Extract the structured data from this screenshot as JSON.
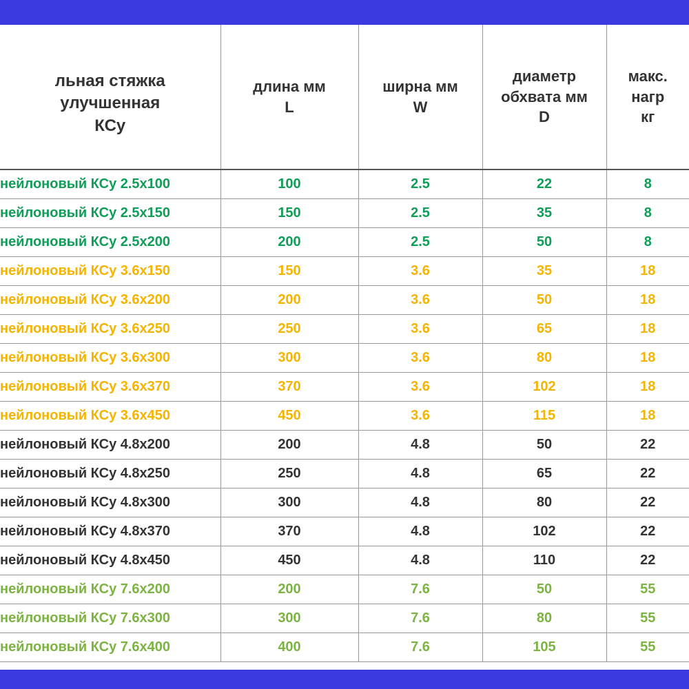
{
  "colors": {
    "blue_bar": "#3a3ae0",
    "header_text": "#333333",
    "border_header": "#555555",
    "border_cell": "#999999",
    "group1": "#0f9d58",
    "group2": "#f4b400",
    "group3": "#333333",
    "group4": "#7cb342"
  },
  "headers": {
    "name": "льная стяжка улучшенная\nКСу",
    "length": "длина мм\nL",
    "width": "ширна мм\nW",
    "diameter": "диаметр\nобхвата мм\nD",
    "load": "макс. нагр\nкг"
  },
  "rows": [
    {
      "name": "нейлоновый КСу 2.5x100",
      "l": "100",
      "w": "2.5",
      "d": "22",
      "load": "8",
      "c": "group1"
    },
    {
      "name": "нейлоновый КСу 2.5x150",
      "l": "150",
      "w": "2.5",
      "d": "35",
      "load": "8",
      "c": "group1"
    },
    {
      "name": "нейлоновый КСу 2.5x200",
      "l": "200",
      "w": "2.5",
      "d": "50",
      "load": "8",
      "c": "group1"
    },
    {
      "name": "нейлоновый КСу 3.6x150",
      "l": "150",
      "w": "3.6",
      "d": "35",
      "load": "18",
      "c": "group2"
    },
    {
      "name": "нейлоновый КСу 3.6x200",
      "l": "200",
      "w": "3.6",
      "d": "50",
      "load": "18",
      "c": "group2"
    },
    {
      "name": "нейлоновый КСу 3.6x250",
      "l": "250",
      "w": "3.6",
      "d": "65",
      "load": "18",
      "c": "group2"
    },
    {
      "name": "нейлоновый КСу 3.6x300",
      "l": "300",
      "w": "3.6",
      "d": "80",
      "load": "18",
      "c": "group2"
    },
    {
      "name": "нейлоновый КСу 3.6x370",
      "l": "370",
      "w": "3.6",
      "d": "102",
      "load": "18",
      "c": "group2"
    },
    {
      "name": "нейлоновый КСу 3.6x450",
      "l": "450",
      "w": "3.6",
      "d": "115",
      "load": "18",
      "c": "group2"
    },
    {
      "name": "нейлоновый КСу 4.8x200",
      "l": "200",
      "w": "4.8",
      "d": "50",
      "load": "22",
      "c": "group3"
    },
    {
      "name": "нейлоновый КСу 4.8x250",
      "l": "250",
      "w": "4.8",
      "d": "65",
      "load": "22",
      "c": "group3"
    },
    {
      "name": "нейлоновый КСу 4.8x300",
      "l": "300",
      "w": "4.8",
      "d": "80",
      "load": "22",
      "c": "group3"
    },
    {
      "name": "нейлоновый КСу 4.8x370",
      "l": "370",
      "w": "4.8",
      "d": "102",
      "load": "22",
      "c": "group3"
    },
    {
      "name": "нейлоновый КСу 4.8x450",
      "l": "450",
      "w": "4.8",
      "d": "110",
      "load": "22",
      "c": "group3"
    },
    {
      "name": "нейлоновый КСу 7.6x200",
      "l": "200",
      "w": "7.6",
      "d": "50",
      "load": "55",
      "c": "group4"
    },
    {
      "name": "нейлоновый КСу 7.6x300",
      "l": "300",
      "w": "7.6",
      "d": "80",
      "load": "55",
      "c": "group4"
    },
    {
      "name": "нейлоновый КСу 7.6x400",
      "l": "400",
      "w": "7.6",
      "d": "105",
      "load": "55",
      "c": "group4"
    }
  ]
}
